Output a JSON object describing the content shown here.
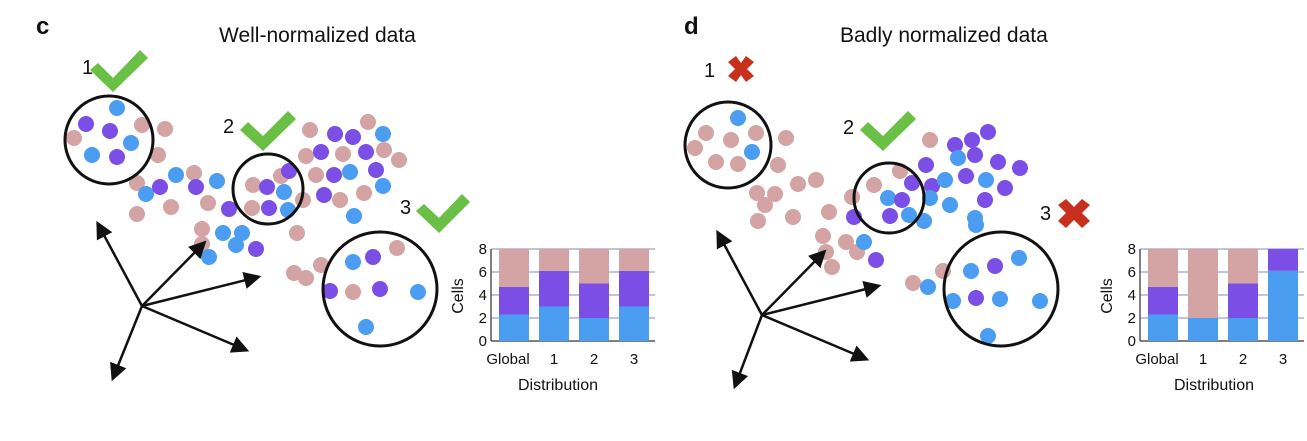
{
  "colors": {
    "pink": "#d4a3a3",
    "purple": "#7b4fe6",
    "blue": "#4a9df0",
    "check": "#6abf45",
    "cross": "#c8301e"
  },
  "icons": {
    "check": "check-icon",
    "cross": "cross-icon"
  },
  "panels": [
    {
      "letter": "c",
      "title": "Well-normalized data",
      "labels": [
        {
          "text": "1",
          "status": "check"
        },
        {
          "text": "2",
          "status": "check"
        },
        {
          "text": "3",
          "status": "check"
        }
      ]
    },
    {
      "letter": "d",
      "title": "Badly normalized data",
      "labels": [
        {
          "text": "1",
          "status": "cross"
        },
        {
          "text": "2",
          "status": "check"
        },
        {
          "text": "3",
          "status": "cross"
        }
      ]
    }
  ],
  "chart_data": [
    {
      "type": "bar",
      "stacked": true,
      "categories": [
        "Global",
        "1",
        "2",
        "3"
      ],
      "series": [
        {
          "color": "#4a9df0",
          "values": [
            2.3,
            3.0,
            2.0,
            3.0
          ]
        },
        {
          "color": "#7b4fe6",
          "values": [
            2.4,
            3.1,
            3.0,
            3.1
          ]
        },
        {
          "color": "#d4a3a3",
          "values": [
            3.3,
            1.9,
            3.0,
            1.9
          ]
        }
      ],
      "xlabel": "Distribution",
      "ylabel": "Cells",
      "ylim": [
        0,
        8
      ],
      "yticks": [
        0,
        2,
        4,
        6,
        8
      ]
    },
    {
      "type": "bar",
      "stacked": true,
      "categories": [
        "Global",
        "1",
        "2",
        "3"
      ],
      "series": [
        {
          "color": "#4a9df0",
          "values": [
            2.3,
            2.0,
            2.0,
            6.1
          ]
        },
        {
          "color": "#7b4fe6",
          "values": [
            2.4,
            0,
            3.0,
            1.9
          ]
        },
        {
          "color": "#d4a3a3",
          "values": [
            3.3,
            6.0,
            3.0,
            0
          ]
        }
      ],
      "xlabel": "Distribution",
      "ylabel": "Cells",
      "ylim": [
        0,
        8
      ],
      "yticks": [
        0,
        2,
        4,
        6,
        8
      ]
    }
  ]
}
